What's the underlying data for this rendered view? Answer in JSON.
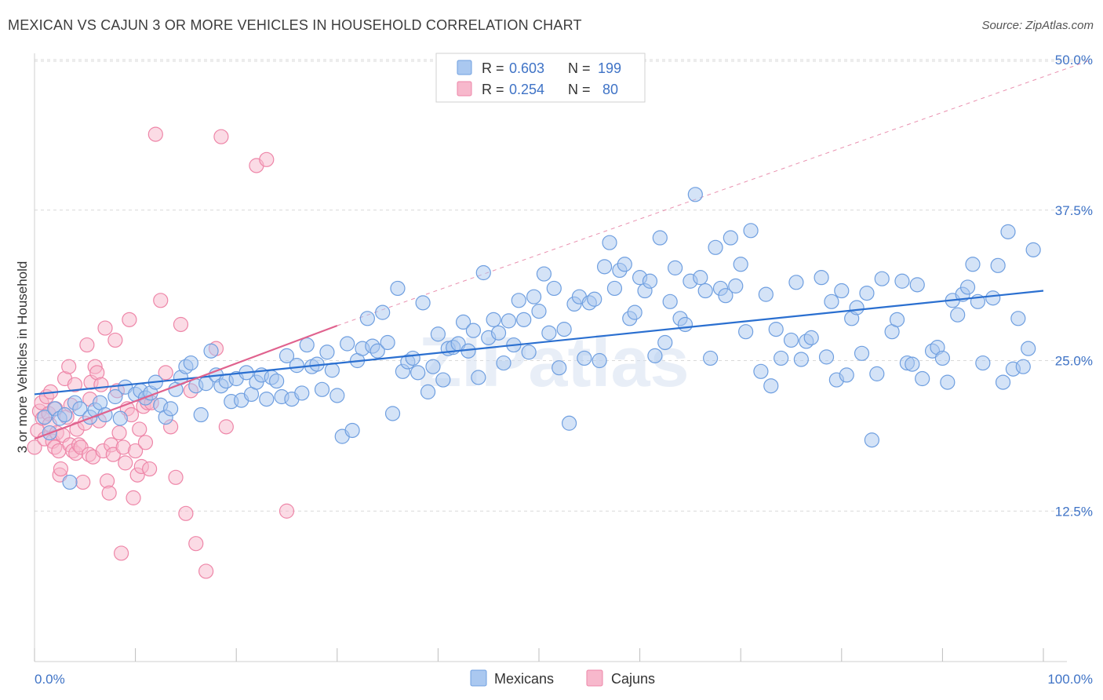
{
  "title": "MEXICAN VS CAJUN 3 OR MORE VEHICLES IN HOUSEHOLD CORRELATION CHART",
  "source": "Source: ZipAtlas.com",
  "watermark": "ZIPatlas",
  "colors": {
    "mexicans_fill": "#aac8f0",
    "mexicans_stroke": "#6f9fe0",
    "mexicans_line": "#2a6fd0",
    "cajuns_fill": "#f7b8cc",
    "cajuns_stroke": "#ee86a8",
    "cajuns_line": "#e0628e",
    "axis_label": "#3f73c6",
    "grid": "#d9d9d9"
  },
  "legend_top": [
    {
      "name": "Mexicans",
      "r_label": "R =",
      "r_value": "0.603",
      "n_label": "N =",
      "n_value": "199"
    },
    {
      "name": "Cajuns",
      "r_label": "R =",
      "r_value": "0.254",
      "n_label": "N =",
      "n_value": "80"
    }
  ],
  "chart_data": {
    "type": "scatter",
    "title": "MEXICAN VS CAJUN 3 OR MORE VEHICLES IN HOUSEHOLD CORRELATION CHART",
    "xlabel": "",
    "ylabel": "3 or more Vehicles in Household",
    "xlim": [
      0,
      100
    ],
    "ylim": [
      0,
      52
    ],
    "x_tick_labels": [
      "0.0%",
      "100.0%"
    ],
    "y_ticks": [
      12.5,
      25.0,
      37.5,
      50.0
    ],
    "y_tick_labels": [
      "12.5%",
      "25.0%",
      "37.5%",
      "50.0%"
    ],
    "grid": "horizontal dashed",
    "legend_position": "bottom",
    "series": [
      {
        "name": "Mexicans",
        "trend": {
          "x": [
            0,
            100
          ],
          "y": [
            22.2,
            30.8
          ]
        },
        "points": [
          [
            1.0,
            20.3
          ],
          [
            1.5,
            19.0
          ],
          [
            2.0,
            21.0
          ],
          [
            2.5,
            20.2
          ],
          [
            3.0,
            20.5
          ],
          [
            3.5,
            14.9
          ],
          [
            4.0,
            21.5
          ],
          [
            4.5,
            21.0
          ],
          [
            5.5,
            20.3
          ],
          [
            6.0,
            20.9
          ],
          [
            6.5,
            21.5
          ],
          [
            7.0,
            20.5
          ],
          [
            8.0,
            22.0
          ],
          [
            8.5,
            20.2
          ],
          [
            9.0,
            22.8
          ],
          [
            10.0,
            22.2
          ],
          [
            10.5,
            22.5
          ],
          [
            11.0,
            21.9
          ],
          [
            11.5,
            22.3
          ],
          [
            12.0,
            23.2
          ],
          [
            12.5,
            21.3
          ],
          [
            13.0,
            20.3
          ],
          [
            13.5,
            21.0
          ],
          [
            14.0,
            22.6
          ],
          [
            14.5,
            23.6
          ],
          [
            15.0,
            24.5
          ],
          [
            15.5,
            24.8
          ],
          [
            16.0,
            22.9
          ],
          [
            16.5,
            20.5
          ],
          [
            17.0,
            23.1
          ],
          [
            17.5,
            25.8
          ],
          [
            18.0,
            23.8
          ],
          [
            18.5,
            22.9
          ],
          [
            19.0,
            23.3
          ],
          [
            19.5,
            21.6
          ],
          [
            20.0,
            23.5
          ],
          [
            20.5,
            21.7
          ],
          [
            21.0,
            24.0
          ],
          [
            21.5,
            22.2
          ],
          [
            22.0,
            23.2
          ],
          [
            22.5,
            23.8
          ],
          [
            23.0,
            21.8
          ],
          [
            23.5,
            23.6
          ],
          [
            24.0,
            23.3
          ],
          [
            24.5,
            22.0
          ],
          [
            25.0,
            25.4
          ],
          [
            25.5,
            21.8
          ],
          [
            26.0,
            24.6
          ],
          [
            26.5,
            22.3
          ],
          [
            27.0,
            26.3
          ],
          [
            27.5,
            24.5
          ],
          [
            28.0,
            24.7
          ],
          [
            28.5,
            22.6
          ],
          [
            29.0,
            25.7
          ],
          [
            29.5,
            24.2
          ],
          [
            30.0,
            22.1
          ],
          [
            30.5,
            18.7
          ],
          [
            31.0,
            26.4
          ],
          [
            31.5,
            19.2
          ],
          [
            32.0,
            25.0
          ],
          [
            32.5,
            26.0
          ],
          [
            33.0,
            28.5
          ],
          [
            33.5,
            26.2
          ],
          [
            34.0,
            25.8
          ],
          [
            34.5,
            29.0
          ],
          [
            35.0,
            26.5
          ],
          [
            35.5,
            20.6
          ],
          [
            36.0,
            31.0
          ],
          [
            36.5,
            24.1
          ],
          [
            37.0,
            24.9
          ],
          [
            37.5,
            25.2
          ],
          [
            38.0,
            24.0
          ],
          [
            38.5,
            29.8
          ],
          [
            39.0,
            22.4
          ],
          [
            39.5,
            24.5
          ],
          [
            40.0,
            27.2
          ],
          [
            40.5,
            23.4
          ],
          [
            41.0,
            26.0
          ],
          [
            41.5,
            26.1
          ],
          [
            42.0,
            26.4
          ],
          [
            42.5,
            28.2
          ],
          [
            43.0,
            25.8
          ],
          [
            43.5,
            27.5
          ],
          [
            44.0,
            23.6
          ],
          [
            44.5,
            32.3
          ],
          [
            45.0,
            26.9
          ],
          [
            45.5,
            28.4
          ],
          [
            46.0,
            27.3
          ],
          [
            46.5,
            24.8
          ],
          [
            47.0,
            28.3
          ],
          [
            47.5,
            26.3
          ],
          [
            48.0,
            30.0
          ],
          [
            48.5,
            28.4
          ],
          [
            49.0,
            25.7
          ],
          [
            49.5,
            30.3
          ],
          [
            50.0,
            29.1
          ],
          [
            50.5,
            32.2
          ],
          [
            51.0,
            27.3
          ],
          [
            51.5,
            31.0
          ],
          [
            52.0,
            24.4
          ],
          [
            52.5,
            27.6
          ],
          [
            53.0,
            19.8
          ],
          [
            53.5,
            29.7
          ],
          [
            54.0,
            30.3
          ],
          [
            54.5,
            25.2
          ],
          [
            55.0,
            29.8
          ],
          [
            55.5,
            30.1
          ],
          [
            56.0,
            25.0
          ],
          [
            56.5,
            32.8
          ],
          [
            57.0,
            34.8
          ],
          [
            57.5,
            31.0
          ],
          [
            58.0,
            32.5
          ],
          [
            58.5,
            33.0
          ],
          [
            59.0,
            28.5
          ],
          [
            59.5,
            29.0
          ],
          [
            60.0,
            31.9
          ],
          [
            60.5,
            30.8
          ],
          [
            61.0,
            31.6
          ],
          [
            61.5,
            25.4
          ],
          [
            62.0,
            35.2
          ],
          [
            62.5,
            26.5
          ],
          [
            63.0,
            29.9
          ],
          [
            63.5,
            32.7
          ],
          [
            64.0,
            28.5
          ],
          [
            64.5,
            28.0
          ],
          [
            65.0,
            31.6
          ],
          [
            65.5,
            38.8
          ],
          [
            66.0,
            31.9
          ],
          [
            66.5,
            30.8
          ],
          [
            67.0,
            25.2
          ],
          [
            67.5,
            34.4
          ],
          [
            68.0,
            31.0
          ],
          [
            68.5,
            30.4
          ],
          [
            69.0,
            35.2
          ],
          [
            69.5,
            31.2
          ],
          [
            70.0,
            33.0
          ],
          [
            70.5,
            27.4
          ],
          [
            71.0,
            35.8
          ],
          [
            72.0,
            24.1
          ],
          [
            72.5,
            30.5
          ],
          [
            73.0,
            22.9
          ],
          [
            73.5,
            27.6
          ],
          [
            74.0,
            25.2
          ],
          [
            75.0,
            26.7
          ],
          [
            75.5,
            31.5
          ],
          [
            76.0,
            25.1
          ],
          [
            76.5,
            26.6
          ],
          [
            77.0,
            26.9
          ],
          [
            78.0,
            31.9
          ],
          [
            78.5,
            25.3
          ],
          [
            79.0,
            29.9
          ],
          [
            79.5,
            23.4
          ],
          [
            80.0,
            30.8
          ],
          [
            80.5,
            23.8
          ],
          [
            81.0,
            28.5
          ],
          [
            81.5,
            29.4
          ],
          [
            82.0,
            25.6
          ],
          [
            82.5,
            30.6
          ],
          [
            83.0,
            18.4
          ],
          [
            83.5,
            23.9
          ],
          [
            84.0,
            31.8
          ],
          [
            85.0,
            27.4
          ],
          [
            85.5,
            28.4
          ],
          [
            86.0,
            31.6
          ],
          [
            86.5,
            24.8
          ],
          [
            87.0,
            24.7
          ],
          [
            87.5,
            31.3
          ],
          [
            88.0,
            23.5
          ],
          [
            89.0,
            25.8
          ],
          [
            89.5,
            26.1
          ],
          [
            90.0,
            25.2
          ],
          [
            90.5,
            23.2
          ],
          [
            91.0,
            30.0
          ],
          [
            91.5,
            28.8
          ],
          [
            92.0,
            30.5
          ],
          [
            92.5,
            31.1
          ],
          [
            93.0,
            33.0
          ],
          [
            93.5,
            29.9
          ],
          [
            94.0,
            24.8
          ],
          [
            95.0,
            30.2
          ],
          [
            95.5,
            32.9
          ],
          [
            96.0,
            23.2
          ],
          [
            96.5,
            35.7
          ],
          [
            97.0,
            24.3
          ],
          [
            97.5,
            28.5
          ],
          [
            98.0,
            24.5
          ],
          [
            98.5,
            26.0
          ],
          [
            99.0,
            34.2
          ]
        ]
      },
      {
        "name": "Cajuns",
        "trend": {
          "x": [
            0,
            30
          ],
          "y": [
            18.5,
            27.9
          ]
        },
        "points": [
          [
            0,
            17.8
          ],
          [
            0.3,
            19.2
          ],
          [
            0.5,
            20.8
          ],
          [
            0.7,
            21.5
          ],
          [
            0.8,
            20.2
          ],
          [
            1.0,
            18.5
          ],
          [
            1.2,
            22.0
          ],
          [
            1.4,
            20.6
          ],
          [
            1.5,
            19.7
          ],
          [
            1.6,
            22.4
          ],
          [
            1.8,
            18.3
          ],
          [
            2.0,
            17.8
          ],
          [
            2.1,
            21.0
          ],
          [
            2.2,
            19.0
          ],
          [
            2.4,
            17.5
          ],
          [
            2.5,
            15.5
          ],
          [
            2.6,
            16.0
          ],
          [
            2.8,
            18.8
          ],
          [
            3.0,
            23.5
          ],
          [
            3.2,
            20.3
          ],
          [
            3.4,
            24.5
          ],
          [
            3.5,
            18.0
          ],
          [
            3.6,
            21.3
          ],
          [
            3.8,
            17.5
          ],
          [
            4.0,
            23.0
          ],
          [
            4.1,
            17.3
          ],
          [
            4.2,
            19.3
          ],
          [
            4.4,
            18.0
          ],
          [
            4.6,
            17.8
          ],
          [
            4.8,
            14.9
          ],
          [
            5.0,
            19.8
          ],
          [
            5.2,
            26.3
          ],
          [
            5.4,
            17.2
          ],
          [
            5.5,
            21.8
          ],
          [
            5.6,
            23.2
          ],
          [
            5.8,
            17.0
          ],
          [
            6.0,
            24.5
          ],
          [
            6.2,
            24.0
          ],
          [
            6.4,
            20.0
          ],
          [
            6.6,
            23.0
          ],
          [
            6.8,
            17.5
          ],
          [
            7.0,
            27.7
          ],
          [
            7.2,
            15.0
          ],
          [
            7.4,
            14.0
          ],
          [
            7.6,
            18.0
          ],
          [
            7.8,
            17.2
          ],
          [
            8.0,
            26.7
          ],
          [
            8.2,
            22.5
          ],
          [
            8.4,
            19.0
          ],
          [
            8.6,
            9.0
          ],
          [
            8.8,
            17.8
          ],
          [
            9.0,
            16.5
          ],
          [
            9.2,
            21.0
          ],
          [
            9.4,
            28.4
          ],
          [
            9.6,
            20.5
          ],
          [
            9.8,
            13.6
          ],
          [
            10.0,
            17.5
          ],
          [
            10.2,
            15.5
          ],
          [
            10.4,
            19.3
          ],
          [
            10.6,
            16.2
          ],
          [
            10.8,
            21.2
          ],
          [
            11.0,
            18.2
          ],
          [
            11.2,
            21.5
          ],
          [
            11.4,
            16.0
          ],
          [
            11.6,
            21.5
          ],
          [
            12.0,
            43.8
          ],
          [
            12.5,
            30.0
          ],
          [
            13.0,
            24.0
          ],
          [
            13.5,
            19.5
          ],
          [
            14.0,
            15.3
          ],
          [
            14.5,
            28.0
          ],
          [
            15.0,
            12.3
          ],
          [
            15.5,
            22.5
          ],
          [
            16.0,
            9.8
          ],
          [
            17.0,
            7.5
          ],
          [
            18.0,
            26.0
          ],
          [
            18.5,
            43.6
          ],
          [
            19.0,
            19.5
          ],
          [
            22.0,
            41.2
          ],
          [
            23.0,
            41.7
          ],
          [
            25.0,
            12.5
          ]
        ]
      }
    ]
  }
}
